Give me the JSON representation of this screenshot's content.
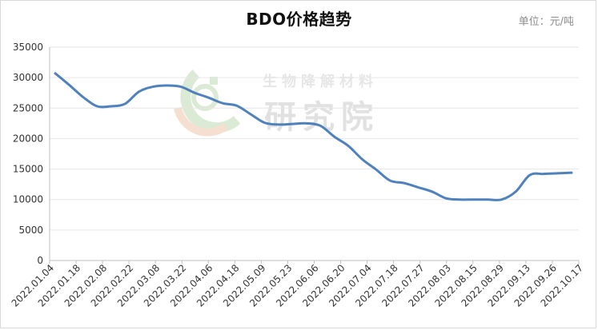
{
  "chart_data": {
    "type": "line",
    "title": "BDO价格趋势",
    "unit_label": "单位：元/吨",
    "watermark": {
      "line1": "生物降解材料",
      "line2": "研究院"
    },
    "ylim": [
      0,
      35000
    ],
    "yticks": [
      0,
      5000,
      10000,
      15000,
      20000,
      25000,
      30000,
      35000
    ],
    "grid": true,
    "legend": "none",
    "line_color": "#4f81bd",
    "x_labels": [
      "2022.01.04",
      "2022.01.18",
      "2022.02.08",
      "2022.02.22",
      "2022.03.08",
      "2022.03.22",
      "2022.04.06",
      "2022.04.18",
      "2022.05.09",
      "2022.05.23",
      "2022.06.06",
      "2022.06.20",
      "2022.07.04",
      "2022.07.18",
      "2022.07.27",
      "2022.08.03",
      "2022.08.15",
      "2022.08.29",
      "2022.09.13",
      "2022.09.26",
      "2022.10.17"
    ],
    "series": [
      {
        "values": [
          30700,
          28800,
          26800,
          25300,
          25300,
          25700,
          27700,
          28500,
          28700,
          28500,
          27500,
          26700,
          25800,
          25400,
          24000,
          22600,
          22300,
          22400,
          22500,
          22100,
          20300,
          18800,
          16600,
          14900,
          13100,
          12700,
          12000,
          11300,
          10200,
          10000,
          10000,
          10000,
          10000,
          11300,
          14000,
          14200,
          14300,
          14400
        ]
      }
    ]
  }
}
